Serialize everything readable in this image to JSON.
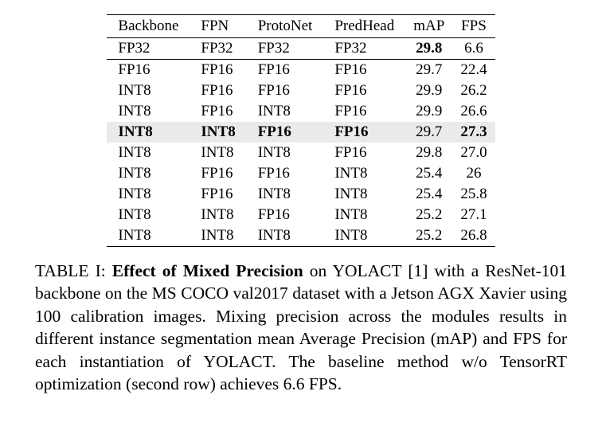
{
  "table": {
    "columns": [
      "Backbone",
      "FPN",
      "ProtoNet",
      "PredHead",
      "mAP",
      "FPS"
    ],
    "numeric_cols": [
      4,
      5
    ],
    "highlight_row": 4,
    "sep_after_rows": [
      0
    ],
    "bold_cells": {
      "0": [
        4
      ],
      "4": [
        0,
        1,
        2,
        3,
        5
      ]
    },
    "rows": [
      [
        "FP32",
        "FP32",
        "FP32",
        "FP32",
        "29.8",
        "6.6"
      ],
      [
        "FP16",
        "FP16",
        "FP16",
        "FP16",
        "29.7",
        "22.4"
      ],
      [
        "INT8",
        "FP16",
        "FP16",
        "FP16",
        "29.9",
        "26.2"
      ],
      [
        "INT8",
        "FP16",
        "INT8",
        "FP16",
        "29.9",
        "26.6"
      ],
      [
        "INT8",
        "INT8",
        "FP16",
        "FP16",
        "29.7",
        "27.3"
      ],
      [
        "INT8",
        "INT8",
        "INT8",
        "FP16",
        "29.8",
        "27.0"
      ],
      [
        "INT8",
        "FP16",
        "FP16",
        "INT8",
        "25.4",
        "26"
      ],
      [
        "INT8",
        "FP16",
        "INT8",
        "INT8",
        "25.4",
        "25.8"
      ],
      [
        "INT8",
        "INT8",
        "FP16",
        "INT8",
        "25.2",
        "27.1"
      ],
      [
        "INT8",
        "INT8",
        "INT8",
        "INT8",
        "25.2",
        "26.8"
      ]
    ]
  },
  "caption": {
    "label": "TABLE I:",
    "title": "Effect of Mixed Precision",
    "rest": " on YOLACT [1] with a ResNet-101 backbone on the MS COCO val2017 dataset with a Jetson AGX Xavier using 100 calibration images. Mixing precision across the modules results in different instance segmentation mean Average Precision (mAP) and FPS for each instantiation of YOLACT. The baseline method w/o TensorRT optimization (second row) achieves 6.6 FPS."
  }
}
